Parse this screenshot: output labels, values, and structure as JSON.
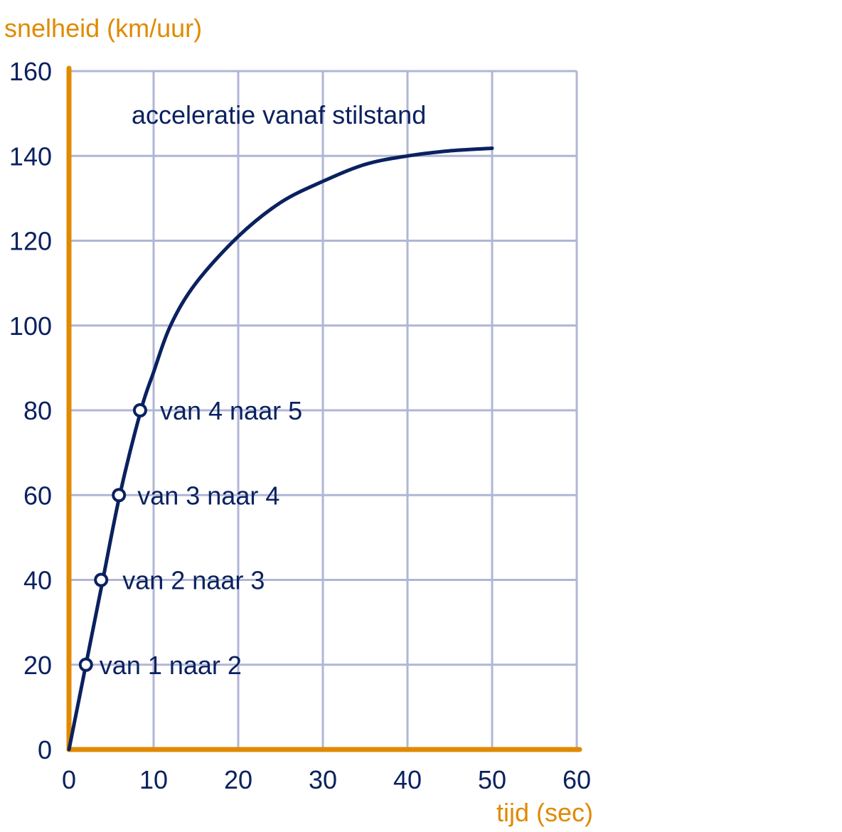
{
  "chart_data": {
    "type": "line",
    "title": "acceleratie vanaf stilstand",
    "xlabel": "tijd (sec)",
    "ylabel": "snelheid (km/uur)",
    "xlim": [
      0,
      60
    ],
    "ylim": [
      0,
      160
    ],
    "xticks": [
      0,
      10,
      20,
      30,
      40,
      50,
      60
    ],
    "yticks": [
      0,
      20,
      40,
      60,
      80,
      100,
      120,
      140,
      160
    ],
    "grid": true,
    "series": [
      {
        "x": [
          0,
          2,
          4,
          6,
          8.5,
          10,
          12,
          15,
          20,
          25,
          30,
          35,
          40,
          45,
          50
        ],
        "y": [
          0,
          20,
          40,
          60,
          80,
          89,
          100,
          110,
          121,
          129,
          134,
          138,
          140,
          141.2,
          141.8
        ]
      }
    ],
    "annotations": [
      {
        "x": 2,
        "y": 20,
        "label": "van 1 naar 2"
      },
      {
        "x": 3.8,
        "y": 40,
        "label": "van 2 naar 3"
      },
      {
        "x": 5.9,
        "y": 60,
        "label": "van 3 naar 4"
      },
      {
        "x": 8.4,
        "y": 80,
        "label": "van 4 naar 5"
      }
    ],
    "colors": {
      "axes": "#e08a00",
      "grid": "#b0b6d4",
      "line": "#0a2160",
      "text": "#0a2160",
      "marker_fill": "#ffffff"
    }
  }
}
